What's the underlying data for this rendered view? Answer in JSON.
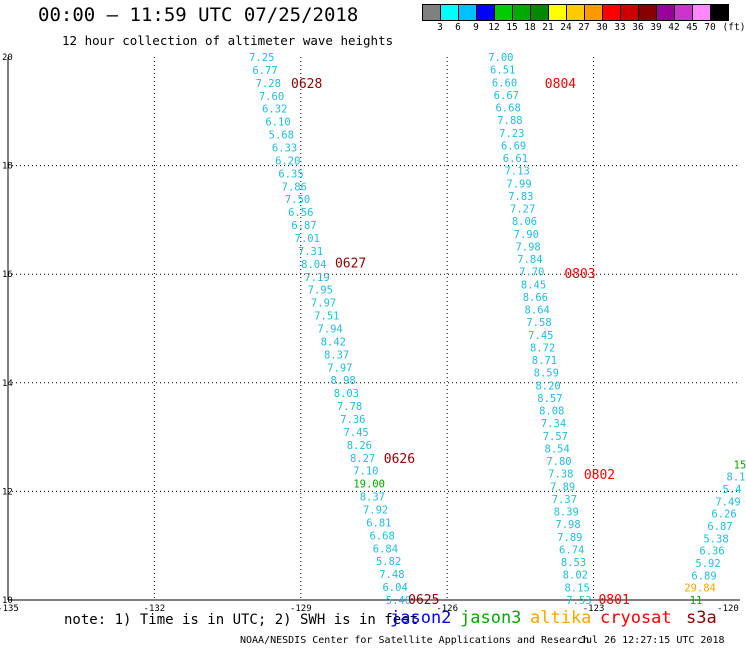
{
  "header": {
    "title": "00:00 – 11:59 UTC 07/25/2018",
    "subtitle": "12 hour collection of altimeter wave heights"
  },
  "colorbar": {
    "colors": [
      "#808080",
      "#00ffff",
      "#00bfff",
      "#0000ff",
      "#00cc00",
      "#00aa00",
      "#008800",
      "#ffff00",
      "#ffcc00",
      "#ff9900",
      "#ff0000",
      "#cc0000",
      "#880000",
      "#990099",
      "#cc33cc",
      "#ff88ff",
      "#000000"
    ],
    "labels": [
      "3",
      "6",
      "9",
      "12",
      "15",
      "18",
      "21",
      "24",
      "27",
      "30",
      "33",
      "36",
      "39",
      "42",
      "45",
      "70",
      "(ft)"
    ]
  },
  "footer": {
    "note": "note: 1) Time is in UTC; 2) SWH is in feet",
    "legend": [
      {
        "name": "jason2",
        "color": "#0000ff"
      },
      {
        "name": "jason3",
        "color": "#00aa00"
      },
      {
        "name": "altika",
        "color": "#ffa500"
      },
      {
        "name": "cryosat",
        "color": "#ff0000"
      },
      {
        "name": "s3a",
        "color": "#8b0000"
      }
    ],
    "credit": "NOAA/NESDIS Center for Satellite Applications and Research",
    "timestamp": "Jul 26 12:27:15 UTC 2018"
  },
  "chart_data": {
    "type": "scatter",
    "xlim": [
      -135,
      -120
    ],
    "ylim": [
      10,
      20
    ],
    "x_ticks": [
      "-135",
      "-132",
      "-129",
      "-126",
      "-123",
      "-120"
    ],
    "y_ticks": [
      "10",
      "12",
      "14",
      "16",
      "18",
      "20"
    ],
    "grid": true,
    "tracks": [
      {
        "satellite": "s3a",
        "color": "#8b0000",
        "value_color": "#22bbdd",
        "start": [
          -129.8,
          20.0
        ],
        "end": [
          -127.0,
          10.0
        ],
        "values": [
          "7.25",
          "6.77",
          "7.28",
          "7.60",
          "6.32",
          "6.10",
          "5.68",
          "6.33",
          "6.20",
          "6.35",
          "7.86",
          "7.50",
          "6.56",
          "6.87",
          "7.01",
          "7.31",
          "8.04",
          "7.19",
          "7.95",
          "7.97",
          "7.51",
          "7.94",
          "8.42",
          "8.37",
          "7.97",
          "8.98",
          "8.03",
          "7.78",
          "7.36",
          "7.45",
          "8.26",
          "8.27",
          "7.10",
          "19.00",
          "8.37",
          "7.92",
          "6.81",
          "6.68",
          "6.84",
          "5.82",
          "7.48",
          "6.04",
          "5.40"
        ],
        "highlight": {
          "19.00": "#00aa00"
        },
        "time_labels": [
          {
            "text": "0628",
            "x": -129.2,
            "y": 19.5
          },
          {
            "text": "0627",
            "x": -128.3,
            "y": 16.2
          },
          {
            "text": "0626",
            "x": -127.3,
            "y": 12.6
          },
          {
            "text": "0625",
            "x": -126.8,
            "y": 10.0
          }
        ]
      },
      {
        "satellite": "cryosat",
        "color": "#ff0000",
        "value_color": "#22bbdd",
        "start": [
          -124.9,
          20.0
        ],
        "end": [
          -123.3,
          10.0
        ],
        "values": [
          "7.00",
          "6.51",
          "6.60",
          "6.67",
          "6.68",
          "7.88",
          "7.23",
          "6.69",
          "6.61",
          "7.13",
          "7.99",
          "7.83",
          "7.27",
          "8.06",
          "7.90",
          "7.98",
          "7.84",
          "7.70",
          "8.45",
          "8.66",
          "8.64",
          "7.58",
          "7.45",
          "8.72",
          "8.71",
          "8.59",
          "8.20",
          "8.57",
          "8.08",
          "7.34",
          "7.57",
          "8.54",
          "7.80",
          "7.38",
          "7.89",
          "7.37",
          "8.39",
          "7.98",
          "7.89",
          "6.74",
          "8.53",
          "8.02",
          "8.15",
          "7.53"
        ],
        "highlight": {},
        "time_labels": [
          {
            "text": "0804",
            "x": -124.0,
            "y": 19.5
          },
          {
            "text": "0803",
            "x": -123.6,
            "y": 16.0
          },
          {
            "text": "0802",
            "x": -123.2,
            "y": 12.3
          },
          {
            "text": "0801",
            "x": -122.9,
            "y": 10.0
          }
        ]
      },
      {
        "satellite": "jason3",
        "color": "#00aa00",
        "value_color": "#22bbdd",
        "start": [
          -120.0,
          12.5
        ],
        "end": [
          -120.9,
          10.0
        ],
        "values": [
          "15",
          "8.1",
          "5.4",
          "7.49",
          "6.26",
          "6.87",
          "5.38",
          "6.36",
          "5.92",
          "6.89",
          "29.84",
          "11"
        ],
        "highlight": {
          "15": "#00aa00",
          "29.84": "#ffa500",
          "11": "#00aa00"
        },
        "time_labels": []
      }
    ]
  }
}
